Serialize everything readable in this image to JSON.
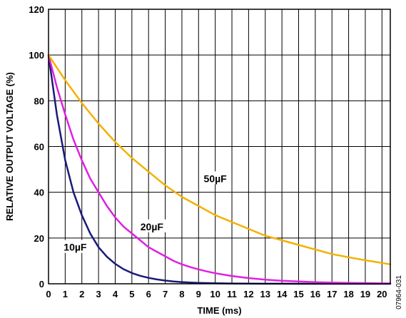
{
  "chart_data": {
    "type": "line",
    "title": "",
    "xlabel": "TIME (ms)",
    "ylabel": "RELATIVE OUTPUT VOLTAGE (%)",
    "xlim": [
      0,
      20.5
    ],
    "ylim": [
      0,
      120
    ],
    "xticks": [
      0,
      1,
      2,
      3,
      4,
      5,
      6,
      7,
      8,
      9,
      10,
      11,
      12,
      13,
      14,
      15,
      16,
      17,
      18,
      19,
      20
    ],
    "yticks": [
      0,
      20,
      40,
      60,
      80,
      100,
      120
    ],
    "grid": true,
    "legend": "none",
    "series": [
      {
        "name": "10µF",
        "color": "#1a1a7a",
        "x": [
          0,
          0.5,
          1,
          1.5,
          2,
          2.5,
          3,
          3.5,
          4,
          4.5,
          5,
          5.5,
          6,
          6.5,
          7,
          7.5,
          8,
          8.5,
          9,
          9.5,
          10,
          11,
          12,
          13,
          14,
          15,
          16,
          17,
          18,
          19,
          20,
          20.5
        ],
        "y": [
          100,
          74,
          54,
          40,
          30,
          22,
          16,
          11.8,
          8.7,
          6.4,
          4.7,
          3.5,
          2.6,
          1.9,
          1.4,
          1.0,
          0.75,
          0.55,
          0.4,
          0.3,
          0.22,
          0.12,
          0.07,
          0.04,
          0.02,
          0.01,
          0,
          0,
          0,
          0,
          0,
          0
        ]
      },
      {
        "name": "20µF",
        "color": "#e020e0",
        "x": [
          0,
          0.5,
          1,
          1.5,
          2,
          2.5,
          3,
          3.5,
          4,
          4.5,
          5,
          5.5,
          6,
          6.5,
          7,
          7.5,
          8,
          8.5,
          9,
          9.5,
          10,
          11,
          12,
          13,
          14,
          15,
          16,
          17,
          18,
          19,
          20,
          20.5
        ],
        "y": [
          100,
          86,
          74,
          63,
          54,
          46,
          40,
          34,
          29,
          25,
          22,
          19,
          16,
          14,
          12,
          10,
          8.5,
          7.3,
          6.3,
          5.4,
          4.6,
          3.4,
          2.5,
          1.8,
          1.3,
          1.0,
          0.7,
          0.5,
          0.4,
          0.3,
          0.2,
          0.15
        ]
      },
      {
        "name": "50µF",
        "color": "#f5b000",
        "x": [
          0,
          1,
          2,
          3,
          4,
          5,
          6,
          7,
          8,
          9,
          10,
          11,
          12,
          13,
          14,
          15,
          16,
          17,
          18,
          19,
          20,
          20.5
        ],
        "y": [
          100,
          89,
          79,
          70,
          62,
          55,
          49,
          43,
          38,
          34,
          30,
          27,
          24,
          21,
          19,
          17,
          15,
          13,
          11.6,
          10.3,
          9.1,
          8.5
        ]
      }
    ],
    "annotations": [
      {
        "text": "50µF",
        "x": 10.0,
        "y": 46
      },
      {
        "text": "20µF",
        "x": 6.2,
        "y": 25
      },
      {
        "text": "10µF",
        "x": 1.6,
        "y": 16
      }
    ],
    "figure_id": "07964-031"
  }
}
